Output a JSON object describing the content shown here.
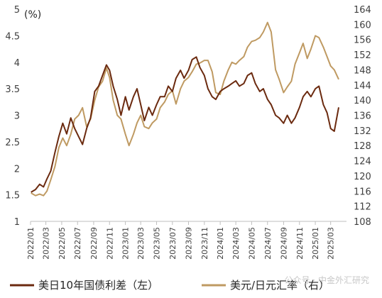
{
  "chart_data": {
    "type": "line",
    "left_axis": {
      "unit": "(%)",
      "ticks": [
        "1",
        "1.5",
        "2",
        "2.5",
        "3",
        "3.5",
        "4",
        "4.5",
        "5"
      ],
      "ylim": [
        1,
        5
      ]
    },
    "right_axis": {
      "ticks": [
        "108",
        "112",
        "116",
        "120",
        "124",
        "128",
        "132",
        "136",
        "140",
        "144",
        "148",
        "152",
        "156",
        "160",
        "164"
      ],
      "ylim": [
        108,
        164
      ]
    },
    "x_ticks": [
      "2022/01",
      "2022/03",
      "2022/05",
      "2022/07",
      "2022/09",
      "2022/11",
      "2023/01",
      "2023/03",
      "2023/05",
      "2023/07",
      "2023/09",
      "2023/11",
      "2024/01",
      "2024/03",
      "2024/05",
      "2024/07",
      "2024/09",
      "2024/11",
      "2025/01",
      "2025/03"
    ],
    "series": [
      {
        "name": "美日10年国债利差（左）",
        "axis": "left",
        "color": "#6b2a0f",
        "x": [
          "2022-01-03",
          "2022-01-20",
          "2022-02-05",
          "2022-02-20",
          "2022-03-05",
          "2022-03-20",
          "2022-04-05",
          "2022-04-20",
          "2022-05-05",
          "2022-05-20",
          "2022-06-05",
          "2022-06-20",
          "2022-07-05",
          "2022-07-20",
          "2022-08-05",
          "2022-08-20",
          "2022-09-05",
          "2022-09-20",
          "2022-10-05",
          "2022-10-20",
          "2022-11-01",
          "2022-11-15",
          "2022-12-01",
          "2022-12-15",
          "2023-01-01",
          "2023-01-15",
          "2023-02-01",
          "2023-02-15",
          "2023-03-01",
          "2023-03-15",
          "2023-04-01",
          "2023-04-15",
          "2023-05-01",
          "2023-05-15",
          "2023-06-01",
          "2023-06-15",
          "2023-07-01",
          "2023-07-15",
          "2023-08-01",
          "2023-08-15",
          "2023-09-01",
          "2023-09-15",
          "2023-10-01",
          "2023-10-15",
          "2023-11-01",
          "2023-11-15",
          "2023-12-01",
          "2023-12-15",
          "2024-01-01",
          "2024-01-15",
          "2024-02-01",
          "2024-02-15",
          "2024-03-01",
          "2024-03-15",
          "2024-04-01",
          "2024-04-15",
          "2024-05-01",
          "2024-05-15",
          "2024-06-01",
          "2024-06-15",
          "2024-07-01",
          "2024-07-15",
          "2024-08-01",
          "2024-08-15",
          "2024-09-01",
          "2024-09-15",
          "2024-10-01",
          "2024-10-15",
          "2024-11-01",
          "2024-11-15",
          "2024-12-01",
          "2024-12-15",
          "2025-01-01",
          "2025-01-15",
          "2025-02-01",
          "2025-02-15",
          "2025-03-01",
          "2025-03-15",
          "2025-04-01"
        ],
        "values": [
          1.55,
          1.6,
          1.7,
          1.65,
          1.8,
          1.95,
          2.3,
          2.6,
          2.85,
          2.65,
          2.95,
          2.75,
          2.6,
          2.45,
          2.75,
          2.95,
          3.45,
          3.55,
          3.75,
          3.95,
          3.85,
          3.55,
          3.3,
          3.0,
          3.35,
          3.1,
          3.35,
          3.5,
          3.2,
          2.9,
          3.15,
          3.0,
          3.2,
          3.35,
          3.35,
          3.55,
          3.45,
          3.7,
          3.85,
          3.7,
          3.85,
          4.05,
          4.1,
          3.9,
          3.75,
          3.5,
          3.35,
          3.3,
          3.45,
          3.5,
          3.55,
          3.6,
          3.65,
          3.55,
          3.6,
          3.75,
          3.8,
          3.6,
          3.45,
          3.5,
          3.3,
          3.2,
          3.0,
          2.95,
          2.85,
          3.0,
          2.85,
          2.95,
          3.15,
          3.35,
          3.45,
          3.35,
          3.5,
          3.55,
          3.2,
          3.05,
          2.75,
          2.7,
          3.15
        ]
      },
      {
        "name": "美元/日元汇率（右）",
        "axis": "right",
        "color": "#bf9a62",
        "x": [
          "2022-01-03",
          "2022-01-20",
          "2022-02-05",
          "2022-02-20",
          "2022-03-05",
          "2022-03-20",
          "2022-04-05",
          "2022-04-20",
          "2022-05-05",
          "2022-05-20",
          "2022-06-05",
          "2022-06-20",
          "2022-07-05",
          "2022-07-20",
          "2022-08-05",
          "2022-08-20",
          "2022-09-05",
          "2022-09-20",
          "2022-10-05",
          "2022-10-20",
          "2022-11-01",
          "2022-11-15",
          "2022-12-01",
          "2022-12-15",
          "2023-01-01",
          "2023-01-15",
          "2023-02-01",
          "2023-02-15",
          "2023-03-01",
          "2023-03-15",
          "2023-04-01",
          "2023-04-15",
          "2023-05-01",
          "2023-05-15",
          "2023-06-01",
          "2023-06-15",
          "2023-07-01",
          "2023-07-15",
          "2023-08-01",
          "2023-08-15",
          "2023-09-01",
          "2023-09-15",
          "2023-10-01",
          "2023-10-15",
          "2023-11-01",
          "2023-11-15",
          "2023-12-01",
          "2023-12-15",
          "2024-01-01",
          "2024-01-15",
          "2024-02-01",
          "2024-02-15",
          "2024-03-01",
          "2024-03-15",
          "2024-04-01",
          "2024-04-15",
          "2024-05-01",
          "2024-05-15",
          "2024-06-01",
          "2024-06-15",
          "2024-07-01",
          "2024-07-15",
          "2024-08-01",
          "2024-08-15",
          "2024-09-01",
          "2024-09-15",
          "2024-10-01",
          "2024-10-15",
          "2024-11-01",
          "2024-11-15",
          "2024-12-01",
          "2024-12-15",
          "2025-01-01",
          "2025-01-15",
          "2025-02-01",
          "2025-02-15",
          "2025-03-01",
          "2025-03-15",
          "2025-04-01"
        ],
        "values": [
          115.5,
          114.8,
          115.2,
          114.8,
          116,
          119,
          122.5,
          127.5,
          130,
          128,
          131,
          135,
          136,
          138,
          133,
          135,
          140,
          143.5,
          145,
          148.5,
          146,
          140,
          136,
          135,
          131,
          128,
          131,
          134,
          136,
          133,
          132.5,
          134,
          135,
          138,
          139.5,
          141.5,
          142.5,
          139,
          143,
          145,
          146,
          147.5,
          149.5,
          149.8,
          150.5,
          150.5,
          147.5,
          142,
          141.5,
          145,
          148,
          150,
          149.5,
          150.5,
          151.5,
          154,
          155.5,
          155.8,
          156.5,
          158,
          160.5,
          158,
          148,
          145.5,
          142,
          143.5,
          145,
          149.5,
          152.5,
          155,
          151,
          153.5,
          157,
          156.5,
          154,
          151.5,
          149,
          148,
          145.5
        ]
      }
    ],
    "watermark": "公众号 · 中金外汇研究"
  }
}
